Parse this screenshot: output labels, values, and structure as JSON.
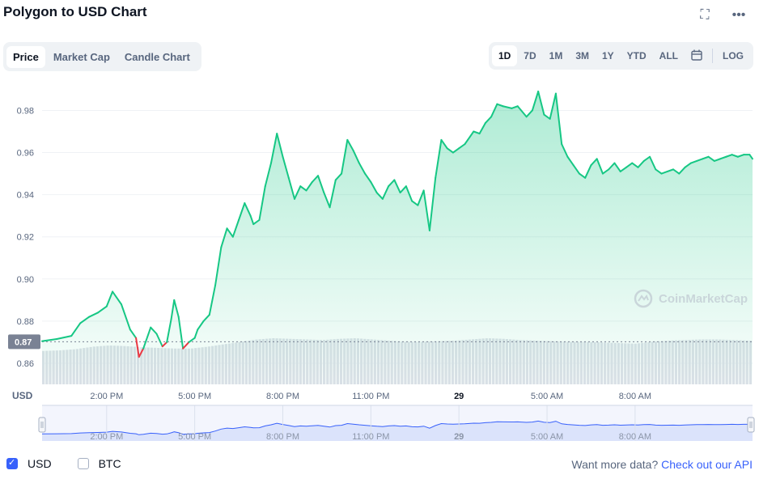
{
  "header": {
    "title": "Polygon to USD Chart",
    "fullscreen_icon": "expand-icon",
    "more_icon": "ellipsis-icon"
  },
  "left_tabs": {
    "price": "Price",
    "market_cap": "Market Cap",
    "candle": "Candle Chart"
  },
  "range_tabs": {
    "d1": "1D",
    "d7": "7D",
    "m1": "1M",
    "m3": "3M",
    "y1": "1Y",
    "ytd": "YTD",
    "all": "ALL",
    "log": "LOG",
    "calendar_icon": "calendar-icon"
  },
  "colors": {
    "up": "#16c784",
    "down": "#ea3943",
    "accent": "#3861fb"
  },
  "footer": {
    "usd": "USD",
    "btc": "BTC",
    "more_data": "Want more data?",
    "api_link": "Check out our API"
  },
  "chart_data": {
    "type": "area",
    "title": "Polygon to USD Chart",
    "currency_label": "USD",
    "watermark": "CoinMarketCap",
    "reference_price": 0.8702,
    "reference_label": "0.87",
    "ylim": [
      0.85,
      0.994
    ],
    "yticks": [
      0.86,
      0.88,
      0.9,
      0.92,
      0.94,
      0.96,
      0.98
    ],
    "ytick_labels": [
      "0.86",
      "0.88",
      "0.90",
      "0.92",
      "0.94",
      "0.96",
      "0.98"
    ],
    "xlim": [
      11.8,
      36.0
    ],
    "xticks": [
      {
        "x": 14,
        "label": "2:00 PM"
      },
      {
        "x": 17,
        "label": "5:00 PM"
      },
      {
        "x": 20,
        "label": "8:00 PM"
      },
      {
        "x": 23,
        "label": "11:00 PM"
      },
      {
        "x": 26,
        "label": "29"
      },
      {
        "x": 29,
        "label": "5:00 AM"
      },
      {
        "x": 32,
        "label": "8:00 AM"
      }
    ],
    "x_unit": "hours (12 = 12:00 PM on 28th)",
    "x": [
      11.8,
      12.3,
      12.8,
      13.1,
      13.4,
      13.7,
      14.0,
      14.2,
      14.5,
      14.8,
      15.0,
      15.1,
      15.25,
      15.5,
      15.7,
      15.9,
      16.05,
      16.2,
      16.3,
      16.45,
      16.6,
      16.8,
      17.0,
      17.1,
      17.3,
      17.5,
      17.7,
      17.9,
      18.1,
      18.3,
      18.5,
      18.7,
      18.9,
      19.0,
      19.2,
      19.4,
      19.6,
      19.8,
      20.0,
      20.2,
      20.4,
      20.6,
      20.8,
      21.0,
      21.2,
      21.4,
      21.6,
      21.8,
      22.0,
      22.2,
      22.4,
      22.6,
      22.8,
      23.0,
      23.2,
      23.4,
      23.6,
      23.8,
      24.0,
      24.2,
      24.4,
      24.6,
      24.8,
      25.0,
      25.2,
      25.4,
      25.6,
      25.8,
      26.0,
      26.2,
      26.3,
      26.5,
      26.7,
      26.9,
      27.1,
      27.3,
      27.5,
      27.8,
      28.0,
      28.3,
      28.5,
      28.7,
      28.9,
      29.1,
      29.3,
      29.5,
      29.7,
      29.9,
      30.1,
      30.3,
      30.5,
      30.7,
      30.9,
      31.1,
      31.3,
      31.5,
      31.7,
      31.9,
      32.1,
      32.3,
      32.5,
      32.7,
      32.9,
      33.1,
      33.3,
      33.5,
      33.7,
      33.9,
      34.1,
      34.3,
      34.5,
      34.7,
      34.9,
      35.1,
      35.3,
      35.5,
      35.7,
      35.9,
      36.0
    ],
    "y": [
      0.8705,
      0.8715,
      0.873,
      0.879,
      0.882,
      0.884,
      0.887,
      0.894,
      0.888,
      0.876,
      0.872,
      0.863,
      0.867,
      0.877,
      0.874,
      0.868,
      0.87,
      0.881,
      0.89,
      0.882,
      0.867,
      0.87,
      0.872,
      0.876,
      0.88,
      0.883,
      0.897,
      0.915,
      0.924,
      0.92,
      0.928,
      0.936,
      0.93,
      0.926,
      0.928,
      0.944,
      0.955,
      0.969,
      0.958,
      0.948,
      0.938,
      0.944,
      0.942,
      0.946,
      0.949,
      0.941,
      0.934,
      0.947,
      0.95,
      0.966,
      0.961,
      0.955,
      0.95,
      0.946,
      0.941,
      0.938,
      0.944,
      0.947,
      0.941,
      0.944,
      0.937,
      0.935,
      0.942,
      0.923,
      0.948,
      0.966,
      0.962,
      0.96,
      0.962,
      0.964,
      0.966,
      0.97,
      0.969,
      0.974,
      0.977,
      0.983,
      0.982,
      0.981,
      0.982,
      0.977,
      0.98,
      0.989,
      0.978,
      0.976,
      0.988,
      0.964,
      0.958,
      0.954,
      0.95,
      0.948,
      0.954,
      0.957,
      0.95,
      0.952,
      0.955,
      0.951,
      0.953,
      0.955,
      0.953,
      0.956,
      0.958,
      0.952,
      0.95,
      0.951,
      0.952,
      0.95,
      0.953,
      0.955,
      0.956,
      0.957,
      0.958,
      0.956,
      0.957,
      0.958,
      0.959,
      0.958,
      0.959,
      0.959,
      0.957
    ],
    "volume_relative": [
      0.55,
      0.56,
      0.58,
      0.62,
      0.64,
      0.63,
      0.61,
      0.6,
      0.59,
      0.59,
      0.62,
      0.66,
      0.7,
      0.74,
      0.76,
      0.75,
      0.74,
      0.73,
      0.75,
      0.76,
      0.74,
      0.72,
      0.7,
      0.7,
      0.71,
      0.72,
      0.74,
      0.76,
      0.75,
      0.73,
      0.72,
      0.71,
      0.7,
      0.7,
      0.69,
      0.68,
      0.67,
      0.7,
      0.72,
      0.73,
      0.74,
      0.74,
      0.73,
      0.72
    ],
    "grid": true,
    "legend": "none"
  }
}
